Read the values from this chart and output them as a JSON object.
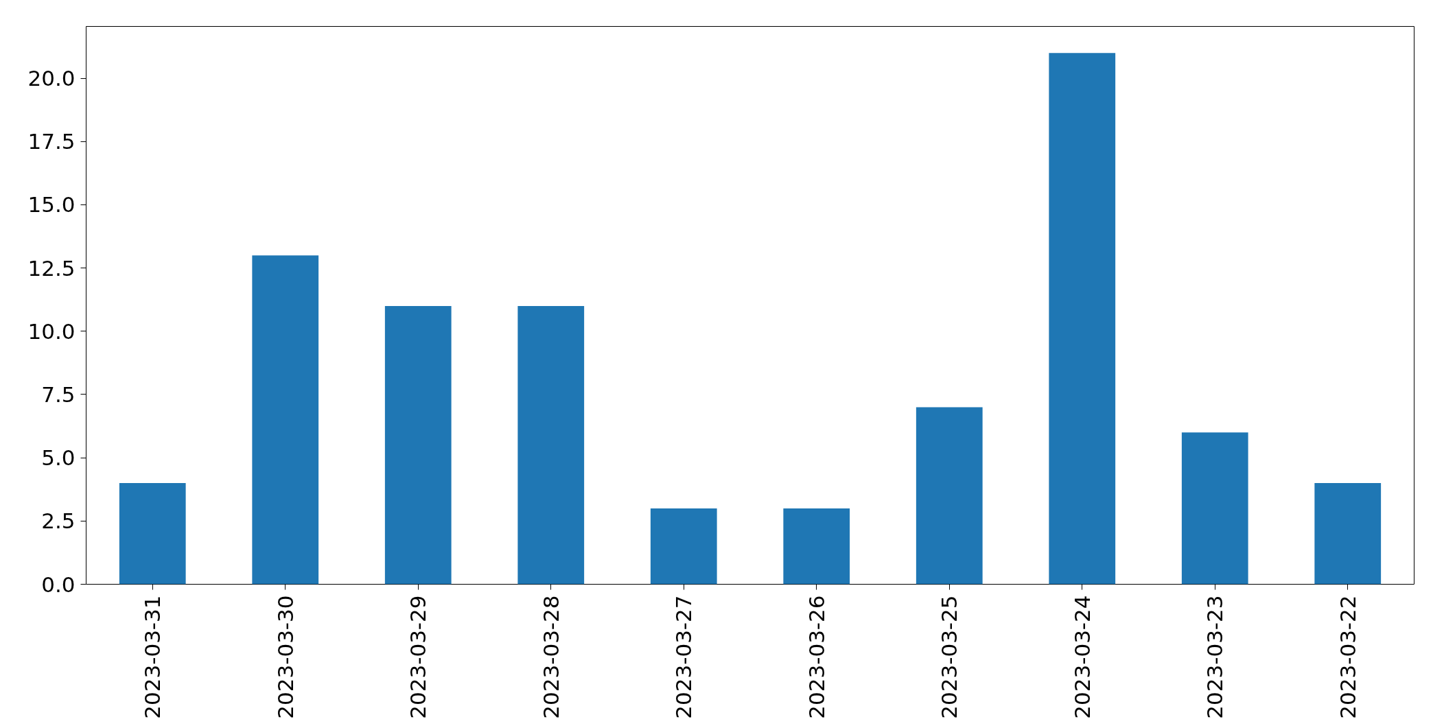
{
  "chart_data": {
    "type": "bar",
    "categories": [
      "2023-03-31",
      "2023-03-30",
      "2023-03-29",
      "2023-03-28",
      "2023-03-27",
      "2023-03-26",
      "2023-03-25",
      "2023-03-24",
      "2023-03-23",
      "2023-03-22"
    ],
    "values": [
      4,
      13,
      11,
      11,
      3,
      3,
      7,
      21,
      6,
      4
    ],
    "color": "#1f77b4",
    "ylim": [
      0,
      22.05
    ],
    "yticks": [
      {
        "value": 0,
        "label": "0.0"
      },
      {
        "value": 2.5,
        "label": "2.5"
      },
      {
        "value": 5,
        "label": "5.0"
      },
      {
        "value": 7.5,
        "label": "7.5"
      },
      {
        "value": 10,
        "label": "10.0"
      },
      {
        "value": 12.5,
        "label": "12.5"
      },
      {
        "value": 15,
        "label": "15.0"
      },
      {
        "value": 17.5,
        "label": "17.5"
      },
      {
        "value": 20,
        "label": "20.0"
      }
    ]
  }
}
